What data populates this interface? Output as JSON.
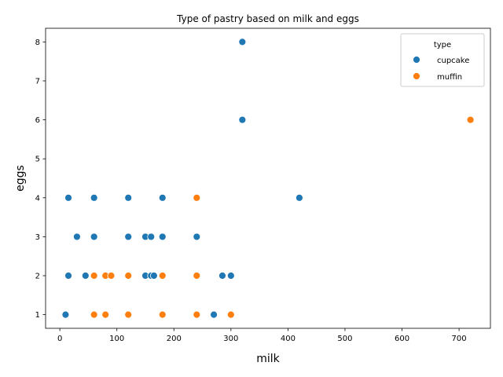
{
  "chart_data": {
    "type": "scatter",
    "title": "Type of pastry based on milk and eggs",
    "xlabel": "milk",
    "ylabel": "eggs",
    "xlim": [
      -25,
      755
    ],
    "ylim": [
      0.65,
      8.35
    ],
    "xticks": [
      0,
      100,
      200,
      300,
      400,
      500,
      600,
      700
    ],
    "yticks": [
      1,
      2,
      3,
      4,
      5,
      6,
      7,
      8
    ],
    "grid": false,
    "legend": {
      "title": "type",
      "placement": "top-right"
    },
    "series": [
      {
        "name": "cupcake",
        "color": "#1f77b4",
        "points": [
          [
            10,
            1
          ],
          [
            15,
            2
          ],
          [
            15,
            4
          ],
          [
            30,
            3
          ],
          [
            45,
            2
          ],
          [
            60,
            3
          ],
          [
            60,
            4
          ],
          [
            120,
            3
          ],
          [
            120,
            4
          ],
          [
            150,
            2
          ],
          [
            150,
            3
          ],
          [
            160,
            2
          ],
          [
            160,
            3
          ],
          [
            165,
            2
          ],
          [
            180,
            3
          ],
          [
            180,
            4
          ],
          [
            240,
            3
          ],
          [
            270,
            1
          ],
          [
            285,
            2
          ],
          [
            300,
            2
          ],
          [
            320,
            6
          ],
          [
            320,
            8
          ],
          [
            420,
            4
          ]
        ]
      },
      {
        "name": "muffin",
        "color": "#ff7f0e",
        "points": [
          [
            60,
            1
          ],
          [
            60,
            2
          ],
          [
            80,
            1
          ],
          [
            80,
            2
          ],
          [
            90,
            2
          ],
          [
            120,
            1
          ],
          [
            120,
            2
          ],
          [
            180,
            1
          ],
          [
            180,
            2
          ],
          [
            240,
            1
          ],
          [
            240,
            2
          ],
          [
            240,
            4
          ],
          [
            300,
            1
          ],
          [
            720,
            6
          ]
        ]
      }
    ]
  }
}
